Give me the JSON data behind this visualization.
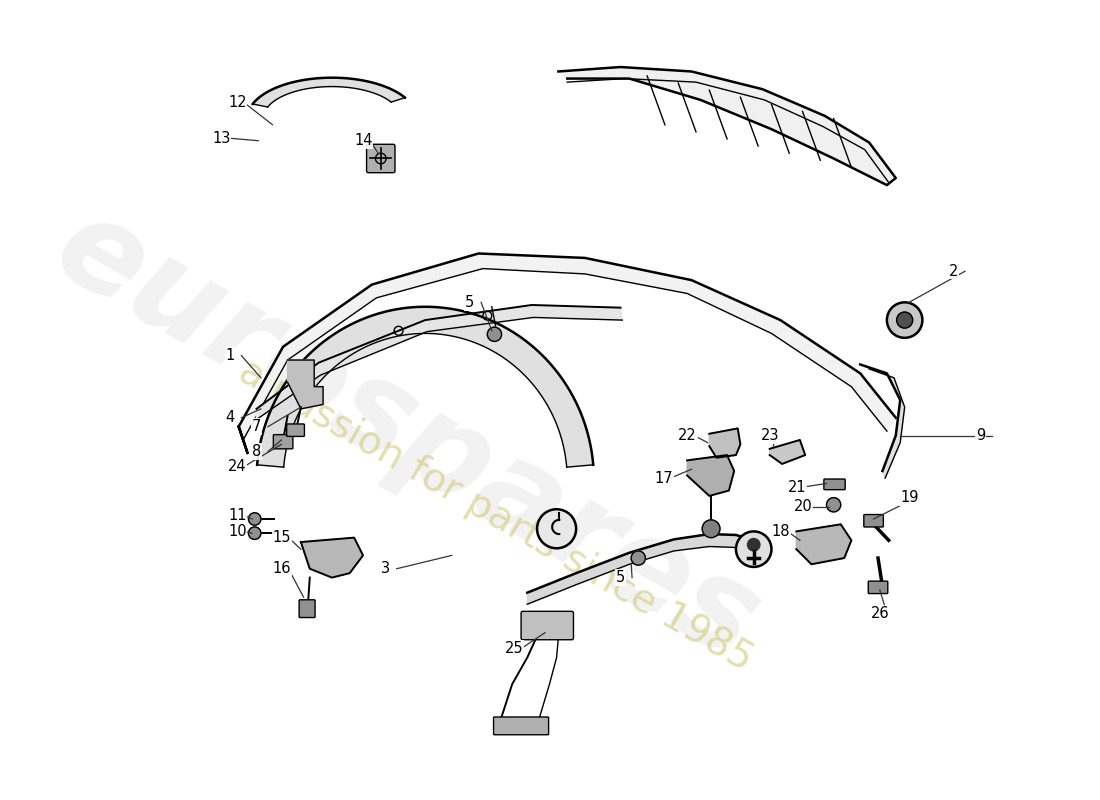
{
  "background_color": "#ffffff",
  "watermark_text1": "eurospares",
  "watermark_text2": "a passion for parts since 1985",
  "watermark_color1": "#cccccc",
  "watermark_color2": "#d4c87a",
  "line_color": "#000000",
  "label_color": "#000000",
  "fig_width": 11.0,
  "fig_height": 8.0,
  "dpi": 100
}
